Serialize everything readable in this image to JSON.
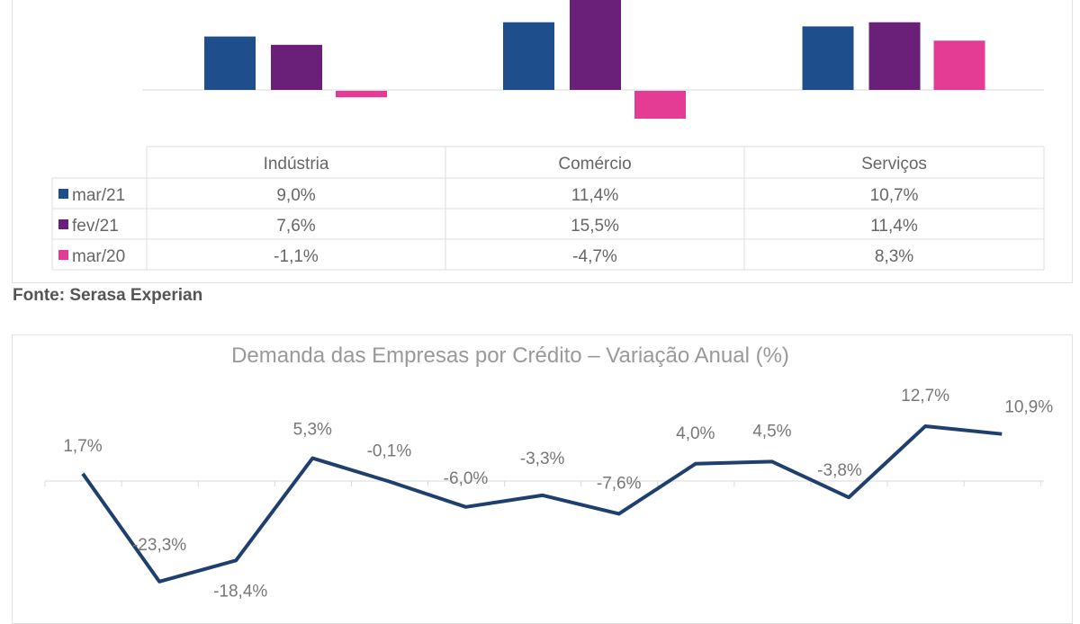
{
  "source": "Fonte: Serasa Experian",
  "chart_data": [
    {
      "type": "bar",
      "title": "",
      "categories": [
        "Indústria",
        "Comércio",
        "Serviços"
      ],
      "series": [
        {
          "name": "mar/21",
          "color": "#1f4e8c",
          "values": [
            9.0,
            11.4,
            10.7
          ],
          "labels": [
            "9,0%",
            "11,4%",
            "10,7%"
          ]
        },
        {
          "name": "fev/21",
          "color": "#6a1f78",
          "values": [
            7.6,
            15.5,
            11.4
          ],
          "labels": [
            "7,6%",
            "15,5%",
            "11,4%"
          ]
        },
        {
          "name": "mar/20",
          "color": "#e43c94",
          "values": [
            -1.1,
            -4.7,
            8.3
          ],
          "labels": [
            "-1,1%",
            "-4,7%",
            "8,3%"
          ]
        }
      ],
      "data_table": true
    },
    {
      "type": "line",
      "title": "Demanda das Empresas por Crédito – Variação Anual (%)",
      "color": "#1f3f6e",
      "values": [
        1.7,
        -23.3,
        -18.4,
        5.3,
        -0.1,
        -6.0,
        -3.3,
        -7.6,
        4.0,
        4.5,
        -3.8,
        12.7,
        10.9
      ],
      "labels": [
        "1,7%",
        "-23,3%",
        "-18,4%",
        "5,3%",
        "-0,1%",
        "-6,0%",
        "-3,3%",
        "-7,6%",
        "4,0%",
        "4,5%",
        "-3,8%",
        "12,7%",
        "10,9%"
      ]
    }
  ]
}
